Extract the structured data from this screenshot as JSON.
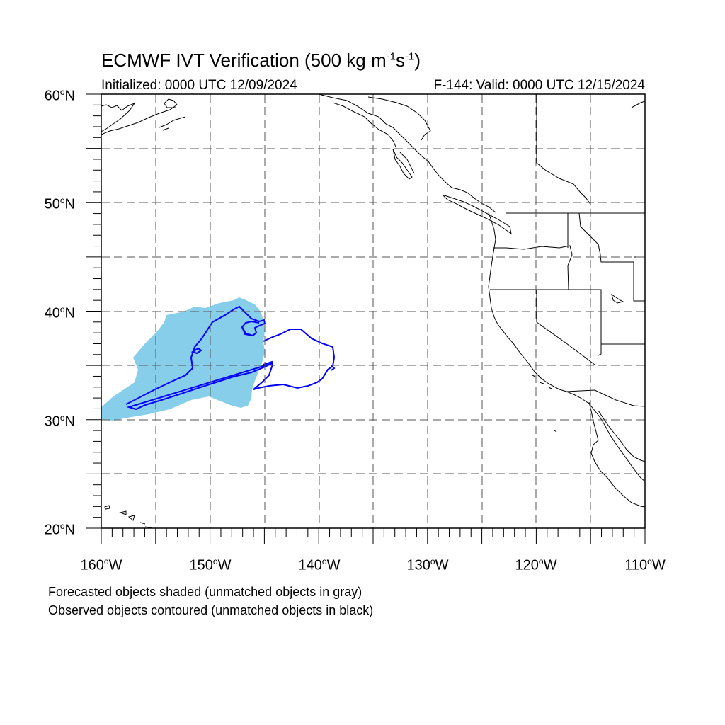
{
  "title": {
    "main": "ECMWF IVT Verification (500 kg m",
    "exp1": "-1",
    "mid": "s",
    "exp2": "-1",
    "end": ")"
  },
  "initialized": "Initialized: 0000 UTC 12/09/2024",
  "valid": "F-144: Valid: 0000 UTC 12/15/2024",
  "map": {
    "lon_range": [
      -160,
      -110
    ],
    "lat_range": [
      20,
      60
    ],
    "projection": "cylindrical-equidistant",
    "grid_spacing_deg": 5,
    "grid_style": "dashed",
    "lat_labels": [
      {
        "num": "60",
        "hemi": "N"
      },
      {
        "num": "50",
        "hemi": "N"
      },
      {
        "num": "40",
        "hemi": "N"
      },
      {
        "num": "30",
        "hemi": "N"
      },
      {
        "num": "20",
        "hemi": "N"
      }
    ],
    "lon_labels": [
      {
        "num": "160",
        "hemi": "W"
      },
      {
        "num": "150",
        "hemi": "W"
      },
      {
        "num": "140",
        "hemi": "W"
      },
      {
        "num": "130",
        "hemi": "W"
      },
      {
        "num": "120",
        "hemi": "W"
      },
      {
        "num": "110",
        "hemi": "W"
      }
    ]
  },
  "colors": {
    "forecast_fill": "#87ceeb",
    "observed_contour": "#0000ff",
    "coastline": "#000000",
    "grid": "#555555"
  },
  "objects": {
    "forecast_matched_shaded": 1,
    "observed_matched_contoured": 2
  },
  "footnotes": [
    "Forecasted objects shaded (unmatched objects in gray)",
    "Observed objects contoured (unmatched objects in black)"
  ]
}
